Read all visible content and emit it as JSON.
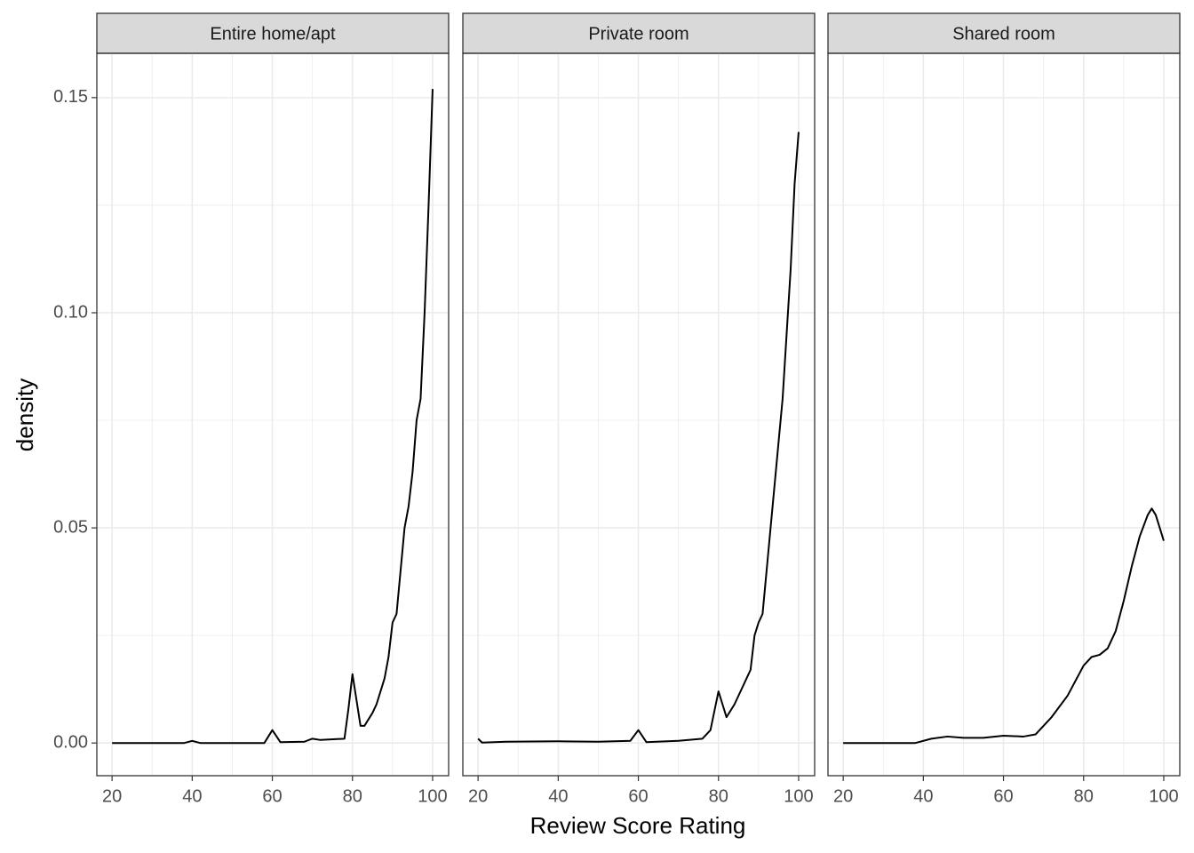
{
  "chart_data": {
    "type": "line",
    "x_label": "Review Score Rating",
    "y_label": "density",
    "color": "#000000",
    "grid": true,
    "xlim": [
      16.2,
      104
    ],
    "ylim": [
      -0.0076,
      0.1603
    ],
    "xticks": [
      20,
      40,
      60,
      80,
      100
    ],
    "x_minor_ticks": [
      30,
      50,
      70,
      90
    ],
    "yticks": [
      {
        "value": 0,
        "label": "0.00"
      },
      0.05,
      {
        "value": 0.1,
        "label": "0.10"
      },
      0.15
    ],
    "y_minor_ticks": [
      0.025,
      0.075,
      0.125
    ],
    "facets": [
      {
        "title": "Entire home/apt",
        "x": [
          20,
          38,
          40,
          42,
          58,
          60,
          62,
          68,
          70,
          72,
          78,
          79,
          80,
          81,
          82,
          83,
          85,
          86,
          88,
          89,
          90,
          91,
          92,
          93,
          94,
          95,
          96,
          97,
          98,
          99,
          100
        ],
        "values": [
          0,
          0,
          0.0005,
          0,
          0,
          0.003,
          0.0002,
          0.0003,
          0.001,
          0.0007,
          0.001,
          0.008,
          0.016,
          0.01,
          0.004,
          0.004,
          0.007,
          0.009,
          0.015,
          0.02,
          0.028,
          0.03,
          0.04,
          0.05,
          0.055,
          0.063,
          0.075,
          0.08,
          0.1,
          0.125,
          0.152
        ]
      },
      {
        "title": "Private room",
        "x": [
          20,
          21,
          27,
          40,
          50,
          58,
          60,
          62,
          70,
          76,
          78,
          80,
          81,
          82,
          84,
          86,
          88,
          89,
          90,
          91,
          92,
          93,
          94,
          95,
          96,
          97,
          98,
          99,
          100
        ],
        "values": [
          0.001,
          0.0001,
          0.0003,
          0.0004,
          0.0003,
          0.0005,
          0.003,
          0.0002,
          0.0005,
          0.001,
          0.003,
          0.012,
          0.009,
          0.006,
          0.009,
          0.013,
          0.017,
          0.025,
          0.028,
          0.03,
          0.04,
          0.05,
          0.06,
          0.07,
          0.08,
          0.095,
          0.11,
          0.13,
          0.142
        ]
      },
      {
        "title": "Shared room",
        "x": [
          20,
          38,
          42,
          46,
          50,
          55,
          60,
          65,
          68,
          72,
          76,
          80,
          82,
          84,
          86,
          88,
          90,
          92,
          94,
          96,
          97,
          98,
          99,
          100
        ],
        "values": [
          0,
          0,
          0.001,
          0.0015,
          0.0012,
          0.0012,
          0.0017,
          0.0015,
          0.002,
          0.006,
          0.011,
          0.018,
          0.02,
          0.0205,
          0.022,
          0.026,
          0.033,
          0.041,
          0.048,
          0.053,
          0.0545,
          0.053,
          0.05,
          0.047
        ]
      }
    ]
  }
}
